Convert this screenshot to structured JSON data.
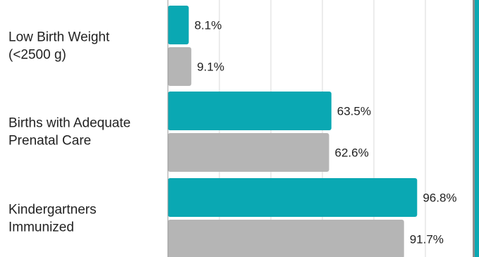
{
  "chart_data": {
    "type": "bar",
    "orientation": "horizontal",
    "categories": [
      [
        "Low Birth Weight",
        "(<2500 g)"
      ],
      [
        "Births with Adequate",
        "Prenatal Care"
      ],
      [
        "Kindergartners",
        "Immunized"
      ]
    ],
    "series": [
      {
        "values": [
          8.1,
          63.5,
          96.8
        ],
        "labels": [
          "8.1%",
          "63.5%",
          "96.8%"
        ],
        "color": "#0aa8b3"
      },
      {
        "values": [
          9.1,
          62.6,
          91.7
        ],
        "labels": [
          "9.1%",
          "62.6%",
          "91.7%"
        ],
        "color": "#b5b5b5"
      }
    ],
    "xlim": [
      0,
      100
    ],
    "grid": true,
    "gridline_color": "#d9d9d9",
    "axis_line_color": "#999999",
    "accent_stripe_color": "#0aa8b3"
  }
}
